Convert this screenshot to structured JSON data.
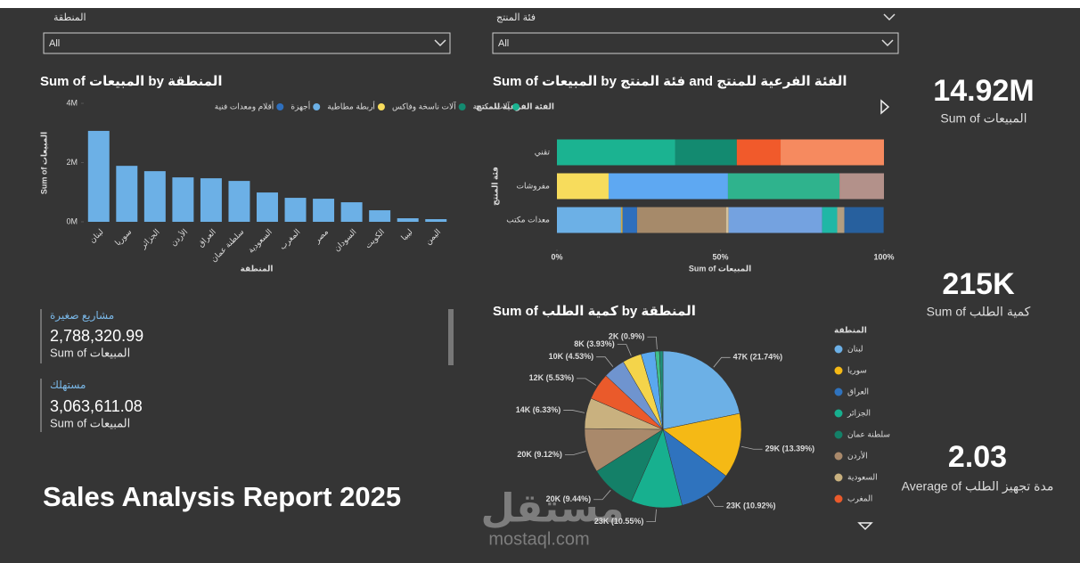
{
  "report_title": "Sales Analysis Report 2025",
  "slicers": [
    {
      "label": "المنطقة",
      "value": "All"
    },
    {
      "label": "فئة المنتج",
      "value": "All"
    }
  ],
  "kpi_cards": [
    {
      "value": "14.92M",
      "label": "Sum of المبيعات"
    },
    {
      "value": "215K",
      "label": "Sum of كمية الطلب"
    },
    {
      "value": "2.03",
      "label": "Average of مدة تجهيز الطلب"
    }
  ],
  "multi_row_card": [
    {
      "category": "مشاريع صغيرة",
      "value": "2,788,320.99",
      "label": "Sum of المبيعات"
    },
    {
      "category": "مستهلك",
      "value": "3,063,611.08",
      "label": "Sum of المبيعات"
    }
  ],
  "watermark": {
    "logo": "مستقل",
    "url": "mostaql.com"
  },
  "chart_data": [
    {
      "type": "bar",
      "title": "Sum of المبيعات by المنطقة",
      "x_label": "المنطقة",
      "y_label": "Sum of المبيعات",
      "categories": [
        "لبنان",
        "سوريا",
        "الجزائر",
        "الأردن",
        "العراق",
        "سلطنة عمان",
        "السعودية",
        "المغرب",
        "مصر",
        "السودان",
        "الكويت",
        "ليبيا",
        "اليمن"
      ],
      "values": [
        3070000,
        1890000,
        1710000,
        1500000,
        1470000,
        1380000,
        990000,
        810000,
        780000,
        660000,
        390000,
        120000,
        90000
      ],
      "color": "#6cb0e6",
      "ylim": [
        0,
        4000000
      ],
      "yticks": [
        {
          "value": 0,
          "label": "0M"
        },
        {
          "value": 2000000,
          "label": "2M"
        },
        {
          "value": 4000000,
          "label": "4M"
        }
      ]
    },
    {
      "type": "stacked_bar_100",
      "title": "Sum of المبيعات by فئة المنتج and الفئة الفرعية للمنتج",
      "x_label": "Sum of المبيعات",
      "y_label": "فئة المنتج",
      "legend_title": "الفئة الفرعية للمنتج",
      "categories": [
        "تقني",
        "مفروشات",
        "معدات مكتب"
      ],
      "xlim": [
        0,
        100
      ],
      "xticks": [
        {
          "value": 0,
          "label": "0%"
        },
        {
          "value": 50,
          "label": "50%"
        },
        {
          "value": 100,
          "label": "100%"
        }
      ],
      "series": [
        {
          "name": "آلات مكتبية",
          "color": "#1bb391",
          "values": [
            36.2,
            null,
            null
          ]
        },
        {
          "name": "آلات ناسخة وفاكس",
          "color": "#138a70",
          "values": [
            18.8,
            null,
            null
          ]
        },
        {
          "color": "#f15a2b",
          "values": [
            13.4,
            null,
            null
          ]
        },
        {
          "color": "#f68a5f",
          "values": [
            31.6,
            null,
            null
          ]
        },
        {
          "name": "أربطة مطاطية",
          "color": "#f7dc5c",
          "values": [
            null,
            15.8,
            null
          ]
        },
        {
          "color": "#5ea8f2",
          "values": [
            null,
            36.5,
            null
          ]
        },
        {
          "color": "#2fb38d",
          "values": [
            null,
            34.1,
            null
          ]
        },
        {
          "color": "#b3918a",
          "values": [
            null,
            13.6,
            null
          ]
        },
        {
          "name": "أجهزة",
          "color": "#6cb0e6",
          "values": [
            null,
            null,
            19.6
          ]
        },
        {
          "color": "#c9a94d",
          "values": [
            null,
            null,
            0.5
          ]
        },
        {
          "name": "أقلام ومعدات فنية",
          "color": "#2e6fbd",
          "values": [
            null,
            null,
            4.4
          ]
        },
        {
          "color": "#a68a6a",
          "values": [
            null,
            null,
            27.2
          ]
        },
        {
          "color": "#d4c09a",
          "values": [
            null,
            null,
            0.8
          ]
        },
        {
          "color": "#74a2e0",
          "values": [
            null,
            null,
            28.6
          ]
        },
        {
          "color": "#1fb7a6",
          "values": [
            null,
            null,
            4.6
          ]
        },
        {
          "color": "#b39e80",
          "values": [
            null,
            null,
            2.2
          ]
        },
        {
          "color": "#27609e",
          "values": [
            null,
            null,
            12.0
          ]
        }
      ]
    },
    {
      "type": "pie",
      "title": "Sum of كمية الطلب by المنطقة",
      "legend_title": "المنطقة",
      "categories": [
        "لبنان",
        "سوريا",
        "العراق",
        "الجزائر",
        "سلطنة عمان",
        "الأردن",
        "السعودية",
        "المغرب",
        null,
        null,
        null,
        null,
        null
      ],
      "values": [
        21.74,
        13.39,
        10.92,
        10.55,
        9.44,
        9.12,
        6.33,
        5.53,
        4.53,
        3.93,
        2.9,
        0.9,
        0.72
      ],
      "value_labels": [
        "47K (21.74%)",
        "29K (13.39%)",
        "23K (10.92%)",
        "23K (10.55%)",
        "20K (9.44%)",
        "20K (9.12%)",
        "14K (6.33%)",
        "12K (5.53%)",
        "10K (4.53%)",
        "8K (3.93%)",
        null,
        "2K (0.9%)",
        null
      ],
      "colors": [
        "#6cb0e6",
        "#f5b915",
        "#2f73be",
        "#17b08f",
        "#148068",
        "#a9896b",
        "#c9b17f",
        "#ea5a2b",
        "#6f94cf",
        "#f4d44a",
        "#5aa8ee",
        "#3fbf8a",
        "#1f8f7a"
      ]
    }
  ]
}
